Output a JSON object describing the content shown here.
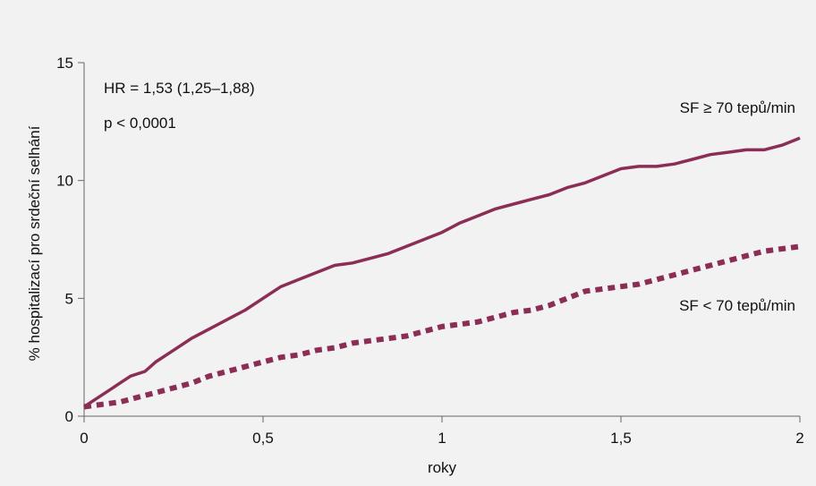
{
  "chart_data": {
    "type": "line",
    "xlabel": "roky",
    "ylabel": "% hospitalizací pro srdeční selhání",
    "xlim": [
      0,
      2
    ],
    "ylim": [
      0,
      15
    ],
    "x_ticks": [
      0,
      0.5,
      1,
      1.5,
      2
    ],
    "x_tick_labels": [
      "0",
      "0,5",
      "1",
      "1,5",
      "2"
    ],
    "y_ticks": [
      0,
      5,
      10,
      15
    ],
    "y_tick_labels": [
      "0",
      "5",
      "10",
      "15"
    ],
    "grid": false,
    "annotations": [
      {
        "text": "HR = 1,53 (1,25–1,88)"
      },
      {
        "text": "p < 0,0001"
      }
    ],
    "series": [
      {
        "name": "SF ≥ 70 tepů/min",
        "color": "#8b2d55",
        "style": "solid",
        "x": [
          0,
          0.02,
          0.05,
          0.08,
          0.1,
          0.13,
          0.17,
          0.2,
          0.25,
          0.3,
          0.35,
          0.4,
          0.45,
          0.5,
          0.55,
          0.6,
          0.65,
          0.7,
          0.75,
          0.8,
          0.85,
          0.9,
          0.95,
          1.0,
          1.05,
          1.1,
          1.15,
          1.2,
          1.25,
          1.3,
          1.35,
          1.4,
          1.45,
          1.5,
          1.55,
          1.6,
          1.65,
          1.7,
          1.75,
          1.8,
          1.85,
          1.9,
          1.95,
          2.0
        ],
        "y": [
          0.4,
          0.6,
          0.9,
          1.2,
          1.4,
          1.7,
          1.9,
          2.3,
          2.8,
          3.3,
          3.7,
          4.1,
          4.5,
          5.0,
          5.5,
          5.8,
          6.1,
          6.4,
          6.5,
          6.7,
          6.9,
          7.2,
          7.5,
          7.8,
          8.2,
          8.5,
          8.8,
          9.0,
          9.2,
          9.4,
          9.7,
          9.9,
          10.2,
          10.5,
          10.6,
          10.6,
          10.7,
          10.9,
          11.1,
          11.2,
          11.3,
          11.3,
          11.5,
          11.8
        ]
      },
      {
        "name": "SF < 70 tepů/min",
        "color": "#8b2d55",
        "style": "dashed",
        "x": [
          0,
          0.05,
          0.1,
          0.15,
          0.2,
          0.25,
          0.3,
          0.35,
          0.4,
          0.45,
          0.5,
          0.55,
          0.6,
          0.65,
          0.7,
          0.75,
          0.8,
          0.85,
          0.9,
          0.95,
          1.0,
          1.05,
          1.1,
          1.15,
          1.2,
          1.25,
          1.3,
          1.35,
          1.4,
          1.45,
          1.5,
          1.55,
          1.6,
          1.65,
          1.7,
          1.75,
          1.8,
          1.85,
          1.9,
          1.95,
          2.0
        ],
        "y": [
          0.4,
          0.5,
          0.6,
          0.8,
          1.0,
          1.2,
          1.4,
          1.7,
          1.9,
          2.1,
          2.3,
          2.5,
          2.6,
          2.8,
          2.9,
          3.1,
          3.2,
          3.3,
          3.4,
          3.6,
          3.8,
          3.9,
          4.0,
          4.2,
          4.4,
          4.5,
          4.7,
          5.0,
          5.3,
          5.4,
          5.5,
          5.6,
          5.8,
          6.0,
          6.2,
          6.4,
          6.6,
          6.8,
          7.0,
          7.1,
          7.2
        ]
      }
    ]
  }
}
